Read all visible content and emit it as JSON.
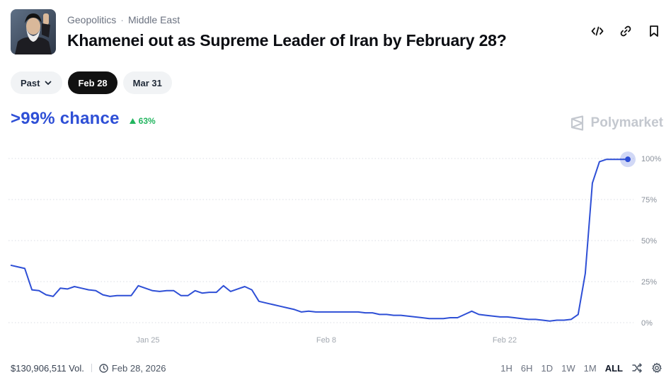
{
  "header": {
    "breadcrumbs": [
      "Geopolitics",
      "Middle East"
    ],
    "title": "Khamenei out as Supreme Leader of Iran by February 28?"
  },
  "filters": {
    "past_label": "Past",
    "dates": [
      "Feb 28",
      "Mar 31"
    ],
    "selected": "Feb 28"
  },
  "summary": {
    "chance": ">99% chance",
    "change": "63%",
    "change_color": "#22b55f",
    "accent_color": "#2e4fd6"
  },
  "brand": {
    "name": "Polymarket"
  },
  "chart_data": {
    "type": "line",
    "x_ticks": [
      "Jan 25",
      "Feb 8",
      "Feb 22"
    ],
    "y_ticks": [
      "100%",
      "75%",
      "50%",
      "25%",
      "0%"
    ],
    "ylim": [
      0,
      100
    ],
    "grid": true,
    "series": [
      {
        "color": "#2e4fd6",
        "values": [
          35,
          34,
          33,
          20,
          19.5,
          17,
          16,
          21,
          20.5,
          22,
          21,
          20,
          19.5,
          17,
          16,
          16.5,
          16.5,
          16.5,
          22.5,
          21,
          19.5,
          19,
          19.5,
          19.5,
          16.5,
          16.5,
          19.5,
          18,
          18.5,
          18.5,
          22.5,
          19,
          20.5,
          22,
          20,
          13,
          12,
          11,
          10,
          9,
          8,
          6.5,
          7,
          6.5,
          6.5,
          6.5,
          6.5,
          6.5,
          6.5,
          6.5,
          6,
          6,
          5,
          5,
          4.5,
          4.5,
          4,
          3.5,
          3,
          2.5,
          2.5,
          2.5,
          3,
          3,
          5,
          7,
          5,
          4.5,
          4,
          3.5,
          3.5,
          3,
          2.5,
          2,
          2,
          1.5,
          1,
          1.5,
          1.5,
          2,
          5,
          30,
          85,
          98,
          99.5,
          99.5,
          99.5,
          99.5
        ]
      }
    ]
  },
  "footer": {
    "volume": "$130,906,511 Vol.",
    "date": "Feb 28, 2026",
    "timeframes": [
      "1H",
      "6H",
      "1D",
      "1W",
      "1M",
      "ALL"
    ],
    "selected_timeframe": "ALL"
  }
}
